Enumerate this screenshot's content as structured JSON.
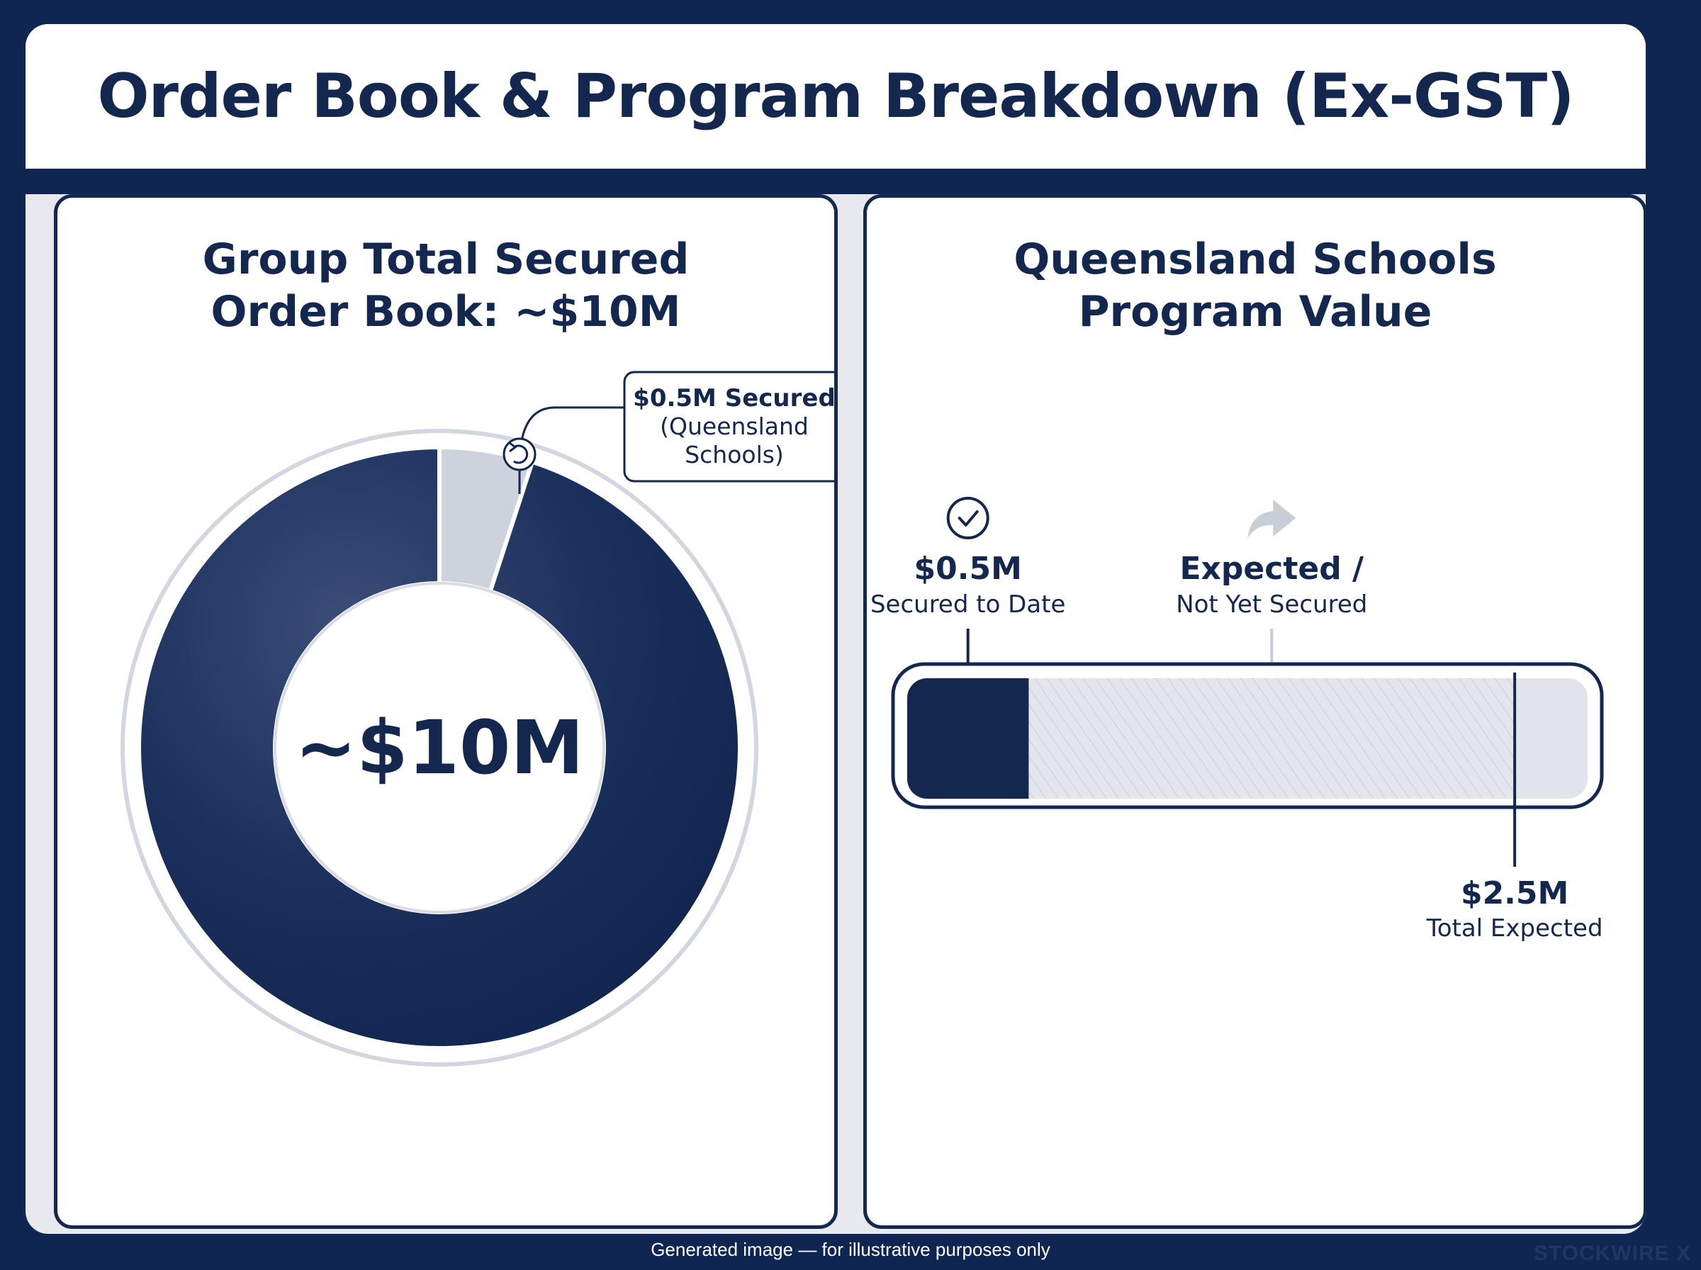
{
  "title": "Order Book & Program Breakdown (Ex-GST)",
  "left_panel": {
    "title_line1": "Group Total Secured",
    "title_line2": "Order Book: ~$10M",
    "center_label": "~$10M",
    "callout_bold": "$0.5M Secured",
    "callout_line2": "(Queensland",
    "callout_line3": "Schools)",
    "callout_icon": "refresh-icon"
  },
  "right_panel": {
    "title_line1": "Queensland Schools",
    "title_line2": "Program Value",
    "secured_value": "$0.5M",
    "secured_label": "Secured to Date",
    "secured_icon": "check-circle-icon",
    "expected_bold": "Expected /",
    "expected_label": "Not Yet Secured",
    "expected_icon": "forward-arrow-icon",
    "total_value": "$2.5M",
    "total_label": "Total Expected"
  },
  "footer": {
    "note": "Generated image — for illustrative purposes only",
    "brand": "STOCKWIRE X"
  },
  "colors": {
    "navy": "#13274f",
    "light_gray": "#cdd2dc",
    "frame_bg": "#0f2552"
  },
  "chart_data": [
    {
      "type": "pie",
      "variant": "donut",
      "title": "Group Total Secured Order Book: ~$10M",
      "total": 10,
      "unit": "$M",
      "slices": [
        {
          "name": "Queensland Schools",
          "value": 0.5,
          "color": "#cdd2dc"
        },
        {
          "name": "",
          "value": 9.5,
          "color": "#13274f"
        }
      ]
    },
    {
      "type": "bar",
      "variant": "progress",
      "title": "Queensland Schools Program Value",
      "unit": "$M",
      "secured": 0.5,
      "total_expected": 2.5,
      "xlim": [
        0,
        2.8
      ]
    }
  ]
}
